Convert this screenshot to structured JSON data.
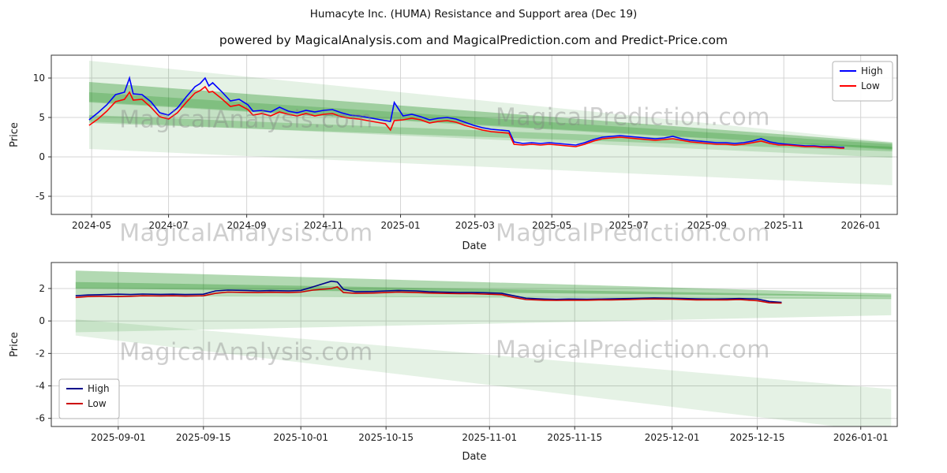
{
  "title": "Humacyte Inc. (HUMA) Resistance and Support area (Dec 19)",
  "subtitle": "powered by MagicalAnalysis.com and MagicalPrediction.com and Predict-Price.com",
  "watermarks": {
    "analysis": "MagicalAnalysis.com",
    "prediction": "MagicalPrediction.com"
  },
  "colors": {
    "grid": "#d4d4d4",
    "axis": "#333333",
    "text": "#1a1a1a",
    "band": "#008000",
    "high_top": "#0000ff",
    "low_top": "#ff0000",
    "high_bottom": "#00008b",
    "low_bottom": "#cc0000"
  },
  "chart_data": [
    {
      "type": "line",
      "title": "",
      "xlabel": "Date",
      "ylabel": "Price",
      "grid": true,
      "x_domain": [
        "2024-03-30",
        "2026-01-30"
      ],
      "ylim": [
        -7.3,
        12.9
      ],
      "y_ticks": [
        -5,
        0,
        5,
        10
      ],
      "x_ticks": [
        {
          "v": "2024-05-01",
          "label": "2024-05"
        },
        {
          "v": "2024-07-01",
          "label": "2024-07"
        },
        {
          "v": "2024-09-01",
          "label": "2024-09"
        },
        {
          "v": "2024-11-01",
          "label": "2024-11"
        },
        {
          "v": "2025-01-01",
          "label": "2025-01"
        },
        {
          "v": "2025-03-01",
          "label": "2025-03"
        },
        {
          "v": "2025-05-01",
          "label": "2025-05"
        },
        {
          "v": "2025-07-01",
          "label": "2025-07"
        },
        {
          "v": "2025-09-01",
          "label": "2025-09"
        },
        {
          "v": "2025-11-01",
          "label": "2025-11"
        },
        {
          "v": "2026-01-01",
          "label": "2026-01"
        }
      ],
      "legend": {
        "position": "top-right",
        "entries": [
          {
            "label": "High",
            "color": "#0000ff"
          },
          {
            "label": "Low",
            "color": "#ff0000"
          }
        ]
      },
      "x": [
        "2024-04-29",
        "2024-05-06",
        "2024-05-13",
        "2024-05-20",
        "2024-05-27",
        "2024-05-31",
        "2024-06-03",
        "2024-06-10",
        "2024-06-17",
        "2024-06-24",
        "2024-07-01",
        "2024-07-08",
        "2024-07-15",
        "2024-07-22",
        "2024-07-26",
        "2024-07-30",
        "2024-08-02",
        "2024-08-05",
        "2024-08-12",
        "2024-08-19",
        "2024-08-26",
        "2024-09-02",
        "2024-09-06",
        "2024-09-13",
        "2024-09-20",
        "2024-09-27",
        "2024-10-04",
        "2024-10-11",
        "2024-10-18",
        "2024-10-25",
        "2024-11-01",
        "2024-11-08",
        "2024-11-15",
        "2024-11-22",
        "2024-11-29",
        "2024-12-06",
        "2024-12-13",
        "2024-12-20",
        "2024-12-24",
        "2024-12-27",
        "2025-01-03",
        "2025-01-10",
        "2025-01-17",
        "2025-01-24",
        "2025-01-31",
        "2025-02-07",
        "2025-02-14",
        "2025-02-21",
        "2025-02-28",
        "2025-03-07",
        "2025-03-14",
        "2025-03-21",
        "2025-03-28",
        "2025-04-01",
        "2025-04-08",
        "2025-04-15",
        "2025-04-22",
        "2025-04-29",
        "2025-05-06",
        "2025-05-13",
        "2025-05-20",
        "2025-05-27",
        "2025-06-03",
        "2025-06-10",
        "2025-06-17",
        "2025-06-24",
        "2025-07-01",
        "2025-07-08",
        "2025-07-15",
        "2025-07-22",
        "2025-07-29",
        "2025-08-05",
        "2025-08-12",
        "2025-08-19",
        "2025-08-26",
        "2025-09-02",
        "2025-09-09",
        "2025-09-16",
        "2025-09-23",
        "2025-09-30",
        "2025-10-07",
        "2025-10-14",
        "2025-10-21",
        "2025-10-28",
        "2025-11-04",
        "2025-11-11",
        "2025-11-18",
        "2025-11-25",
        "2025-12-02",
        "2025-12-09",
        "2025-12-16",
        "2025-12-19"
      ],
      "series": [
        {
          "name": "High",
          "color": "#0000ff",
          "values": [
            4.7,
            5.6,
            6.6,
            7.9,
            8.2,
            10.0,
            8.0,
            7.9,
            7.0,
            5.6,
            5.3,
            6.2,
            7.6,
            8.9,
            9.3,
            10.0,
            9.0,
            9.4,
            8.3,
            7.1,
            7.3,
            6.6,
            5.8,
            5.9,
            5.7,
            6.3,
            5.8,
            5.6,
            5.9,
            5.7,
            5.9,
            6.0,
            5.6,
            5.3,
            5.2,
            5.0,
            4.8,
            4.6,
            4.5,
            6.9,
            5.2,
            5.4,
            5.1,
            4.7,
            4.9,
            5.0,
            4.8,
            4.4,
            4.0,
            3.7,
            3.5,
            3.4,
            3.3,
            1.9,
            1.7,
            1.8,
            1.7,
            1.8,
            1.7,
            1.6,
            1.5,
            1.8,
            2.2,
            2.5,
            2.6,
            2.7,
            2.6,
            2.5,
            2.4,
            2.3,
            2.4,
            2.6,
            2.3,
            2.1,
            2.0,
            1.9,
            1.8,
            1.8,
            1.7,
            1.8,
            2.0,
            2.3,
            1.9,
            1.7,
            1.6,
            1.5,
            1.4,
            1.4,
            1.3,
            1.3,
            1.2,
            1.2
          ]
        },
        {
          "name": "Low",
          "color": "#ff0000",
          "values": [
            4.0,
            4.8,
            5.8,
            7.0,
            7.3,
            8.2,
            7.2,
            7.3,
            6.3,
            5.1,
            4.8,
            5.6,
            6.9,
            8.1,
            8.4,
            8.9,
            8.2,
            8.3,
            7.4,
            6.4,
            6.6,
            6.0,
            5.3,
            5.5,
            5.2,
            5.7,
            5.4,
            5.2,
            5.5,
            5.2,
            5.4,
            5.5,
            5.1,
            4.9,
            4.8,
            4.6,
            4.4,
            4.2,
            3.4,
            4.6,
            4.7,
            4.9,
            4.7,
            4.3,
            4.5,
            4.6,
            4.4,
            4.0,
            3.7,
            3.4,
            3.2,
            3.1,
            3.0,
            1.6,
            1.5,
            1.6,
            1.5,
            1.6,
            1.5,
            1.4,
            1.3,
            1.6,
            2.0,
            2.3,
            2.4,
            2.5,
            2.4,
            2.3,
            2.2,
            2.1,
            2.2,
            2.3,
            2.1,
            1.9,
            1.8,
            1.7,
            1.6,
            1.6,
            1.5,
            1.6,
            1.8,
            2.0,
            1.7,
            1.5,
            1.5,
            1.4,
            1.3,
            1.3,
            1.2,
            1.2,
            1.1,
            1.1
          ]
        }
      ],
      "bands": [
        {
          "x": [
            "2024-04-29",
            "2026-01-26"
          ],
          "top": [
            12.2,
            1.9
          ],
          "bottom": [
            1.0,
            -3.6
          ],
          "alpha": 0.1
        },
        {
          "x": [
            "2024-04-29",
            "2026-01-26"
          ],
          "top": [
            9.5,
            1.8
          ],
          "bottom": [
            4.5,
            -0.1
          ],
          "alpha": 0.14
        },
        {
          "x": [
            "2024-04-29",
            "2026-01-26"
          ],
          "top": [
            9.5,
            1.8
          ],
          "bottom": [
            6.9,
            0.9
          ],
          "alpha": 0.18
        },
        {
          "x": [
            "2024-04-29",
            "2026-01-26"
          ],
          "top": [
            8.2,
            1.6
          ],
          "bottom": [
            7.0,
            1.0
          ],
          "alpha": 0.2
        },
        {
          "x": [
            "2024-04-29",
            "2026-01-26"
          ],
          "top": [
            5.3,
            1.3
          ],
          "bottom": [
            4.3,
            0.7
          ],
          "alpha": 0.2
        }
      ]
    },
    {
      "type": "line",
      "title": "",
      "xlabel": "Date",
      "ylabel": "Price",
      "grid": true,
      "x_domain": [
        "2025-08-21",
        "2026-01-07"
      ],
      "ylim": [
        -6.5,
        3.6
      ],
      "y_ticks": [
        -6,
        -4,
        -2,
        0,
        2
      ],
      "x_ticks": [
        {
          "v": "2025-09-01",
          "label": "2025-09-01"
        },
        {
          "v": "2025-09-15",
          "label": "2025-09-15"
        },
        {
          "v": "2025-10-01",
          "label": "2025-10-01"
        },
        {
          "v": "2025-10-15",
          "label": "2025-10-15"
        },
        {
          "v": "2025-11-01",
          "label": "2025-11-01"
        },
        {
          "v": "2025-11-15",
          "label": "2025-11-15"
        },
        {
          "v": "2025-12-01",
          "label": "2025-12-01"
        },
        {
          "v": "2025-12-15",
          "label": "2025-12-15"
        },
        {
          "v": "2026-01-01",
          "label": "2026-01-01"
        }
      ],
      "legend": {
        "position": "bottom-left",
        "entries": [
          {
            "label": "High",
            "color": "#00008b"
          },
          {
            "label": "Low",
            "color": "#cc0000"
          }
        ]
      },
      "x": [
        "2025-08-25",
        "2025-08-27",
        "2025-08-29",
        "2025-09-01",
        "2025-09-03",
        "2025-09-05",
        "2025-09-08",
        "2025-09-10",
        "2025-09-12",
        "2025-09-15",
        "2025-09-17",
        "2025-09-19",
        "2025-09-22",
        "2025-09-24",
        "2025-09-26",
        "2025-09-29",
        "2025-10-01",
        "2025-10-03",
        "2025-10-06",
        "2025-10-07",
        "2025-10-08",
        "2025-10-10",
        "2025-10-13",
        "2025-10-15",
        "2025-10-17",
        "2025-10-20",
        "2025-10-22",
        "2025-10-24",
        "2025-10-27",
        "2025-10-29",
        "2025-10-31",
        "2025-11-03",
        "2025-11-05",
        "2025-11-07",
        "2025-11-10",
        "2025-11-12",
        "2025-11-14",
        "2025-11-17",
        "2025-11-19",
        "2025-11-21",
        "2025-11-24",
        "2025-11-26",
        "2025-11-28",
        "2025-12-01",
        "2025-12-03",
        "2025-12-05",
        "2025-12-08",
        "2025-12-10",
        "2025-12-12",
        "2025-12-15",
        "2025-12-17",
        "2025-12-19"
      ],
      "series": [
        {
          "name": "High",
          "color": "#00008b",
          "values": [
            1.55,
            1.6,
            1.62,
            1.65,
            1.63,
            1.66,
            1.64,
            1.65,
            1.63,
            1.65,
            1.85,
            1.9,
            1.88,
            1.85,
            1.87,
            1.85,
            1.88,
            2.1,
            2.45,
            2.4,
            1.95,
            1.8,
            1.82,
            1.85,
            1.88,
            1.85,
            1.8,
            1.78,
            1.75,
            1.75,
            1.74,
            1.7,
            1.55,
            1.4,
            1.35,
            1.33,
            1.35,
            1.34,
            1.35,
            1.36,
            1.38,
            1.4,
            1.42,
            1.4,
            1.38,
            1.36,
            1.35,
            1.36,
            1.38,
            1.35,
            1.2,
            1.15
          ]
        },
        {
          "name": "Low",
          "color": "#cc0000",
          "values": [
            1.45,
            1.5,
            1.52,
            1.5,
            1.52,
            1.55,
            1.54,
            1.55,
            1.53,
            1.55,
            1.7,
            1.78,
            1.76,
            1.75,
            1.77,
            1.75,
            1.78,
            1.9,
            2.0,
            2.1,
            1.75,
            1.7,
            1.72,
            1.75,
            1.78,
            1.75,
            1.72,
            1.7,
            1.68,
            1.68,
            1.66,
            1.62,
            1.45,
            1.32,
            1.28,
            1.27,
            1.28,
            1.28,
            1.3,
            1.3,
            1.32,
            1.34,
            1.35,
            1.34,
            1.32,
            1.3,
            1.3,
            1.3,
            1.32,
            1.25,
            1.12,
            1.1
          ]
        }
      ],
      "bands": [
        {
          "x": [
            "2025-08-25",
            "2026-01-06"
          ],
          "top": [
            3.1,
            1.68
          ],
          "bottom": [
            2.0,
            1.5
          ],
          "alpha": 0.3
        },
        {
          "x": [
            "2025-08-25",
            "2026-01-06"
          ],
          "top": [
            2.4,
            1.55
          ],
          "bottom": [
            1.55,
            1.35
          ],
          "alpha": 0.26
        },
        {
          "x": [
            "2025-08-25",
            "2026-01-06"
          ],
          "top": [
            1.55,
            1.45
          ],
          "bottom": [
            -0.7,
            0.35
          ],
          "alpha": 0.13
        },
        {
          "x": [
            "2025-08-25",
            "2026-01-06"
          ],
          "top": [
            0.1,
            -4.2
          ],
          "bottom": [
            -0.9,
            -6.9
          ],
          "alpha": 0.1
        }
      ]
    }
  ]
}
